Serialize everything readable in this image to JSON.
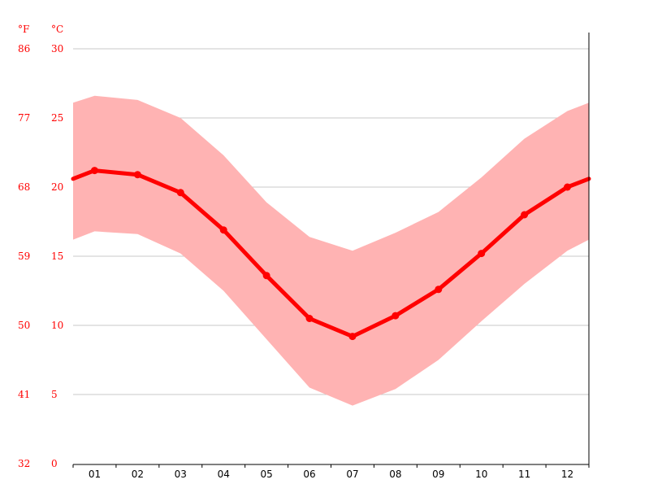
{
  "chart_data": {
    "type": "line",
    "title": "",
    "xlabel": "",
    "ylabel": "",
    "units": {
      "fahrenheit": "°F",
      "celsius": "°C"
    },
    "categories": [
      "01",
      "02",
      "03",
      "04",
      "05",
      "06",
      "07",
      "08",
      "09",
      "10",
      "11",
      "12"
    ],
    "ylim": [
      0,
      30
    ],
    "yticks_celsius": [
      "0",
      "5",
      "10",
      "15",
      "20",
      "25",
      "30"
    ],
    "yticks_fahrenheit": [
      "32",
      "41",
      "50",
      "59",
      "68",
      "77",
      "86"
    ],
    "grid": true,
    "series": [
      {
        "values": [
          21.2,
          20.9,
          19.6,
          16.9,
          13.6,
          10.5,
          9.2,
          10.7,
          12.6,
          15.2,
          18.0,
          20.0
        ],
        "color": "#ff0000"
      }
    ],
    "band": {
      "upper": [
        26.6,
        26.3,
        25.0,
        22.3,
        18.9,
        16.4,
        15.4,
        16.7,
        18.2,
        20.7,
        23.5,
        25.5
      ],
      "lower": [
        16.8,
        16.6,
        15.2,
        12.5,
        9.0,
        5.5,
        4.2,
        5.4,
        7.5,
        10.3,
        13.0,
        15.4
      ],
      "color": "#ffb3b3"
    },
    "boundary": {
      "start": 20.6,
      "end": 20.6,
      "upper_start": 26.1,
      "upper_end": 26.1,
      "lower_start": 16.2,
      "lower_end": 16.2
    }
  }
}
